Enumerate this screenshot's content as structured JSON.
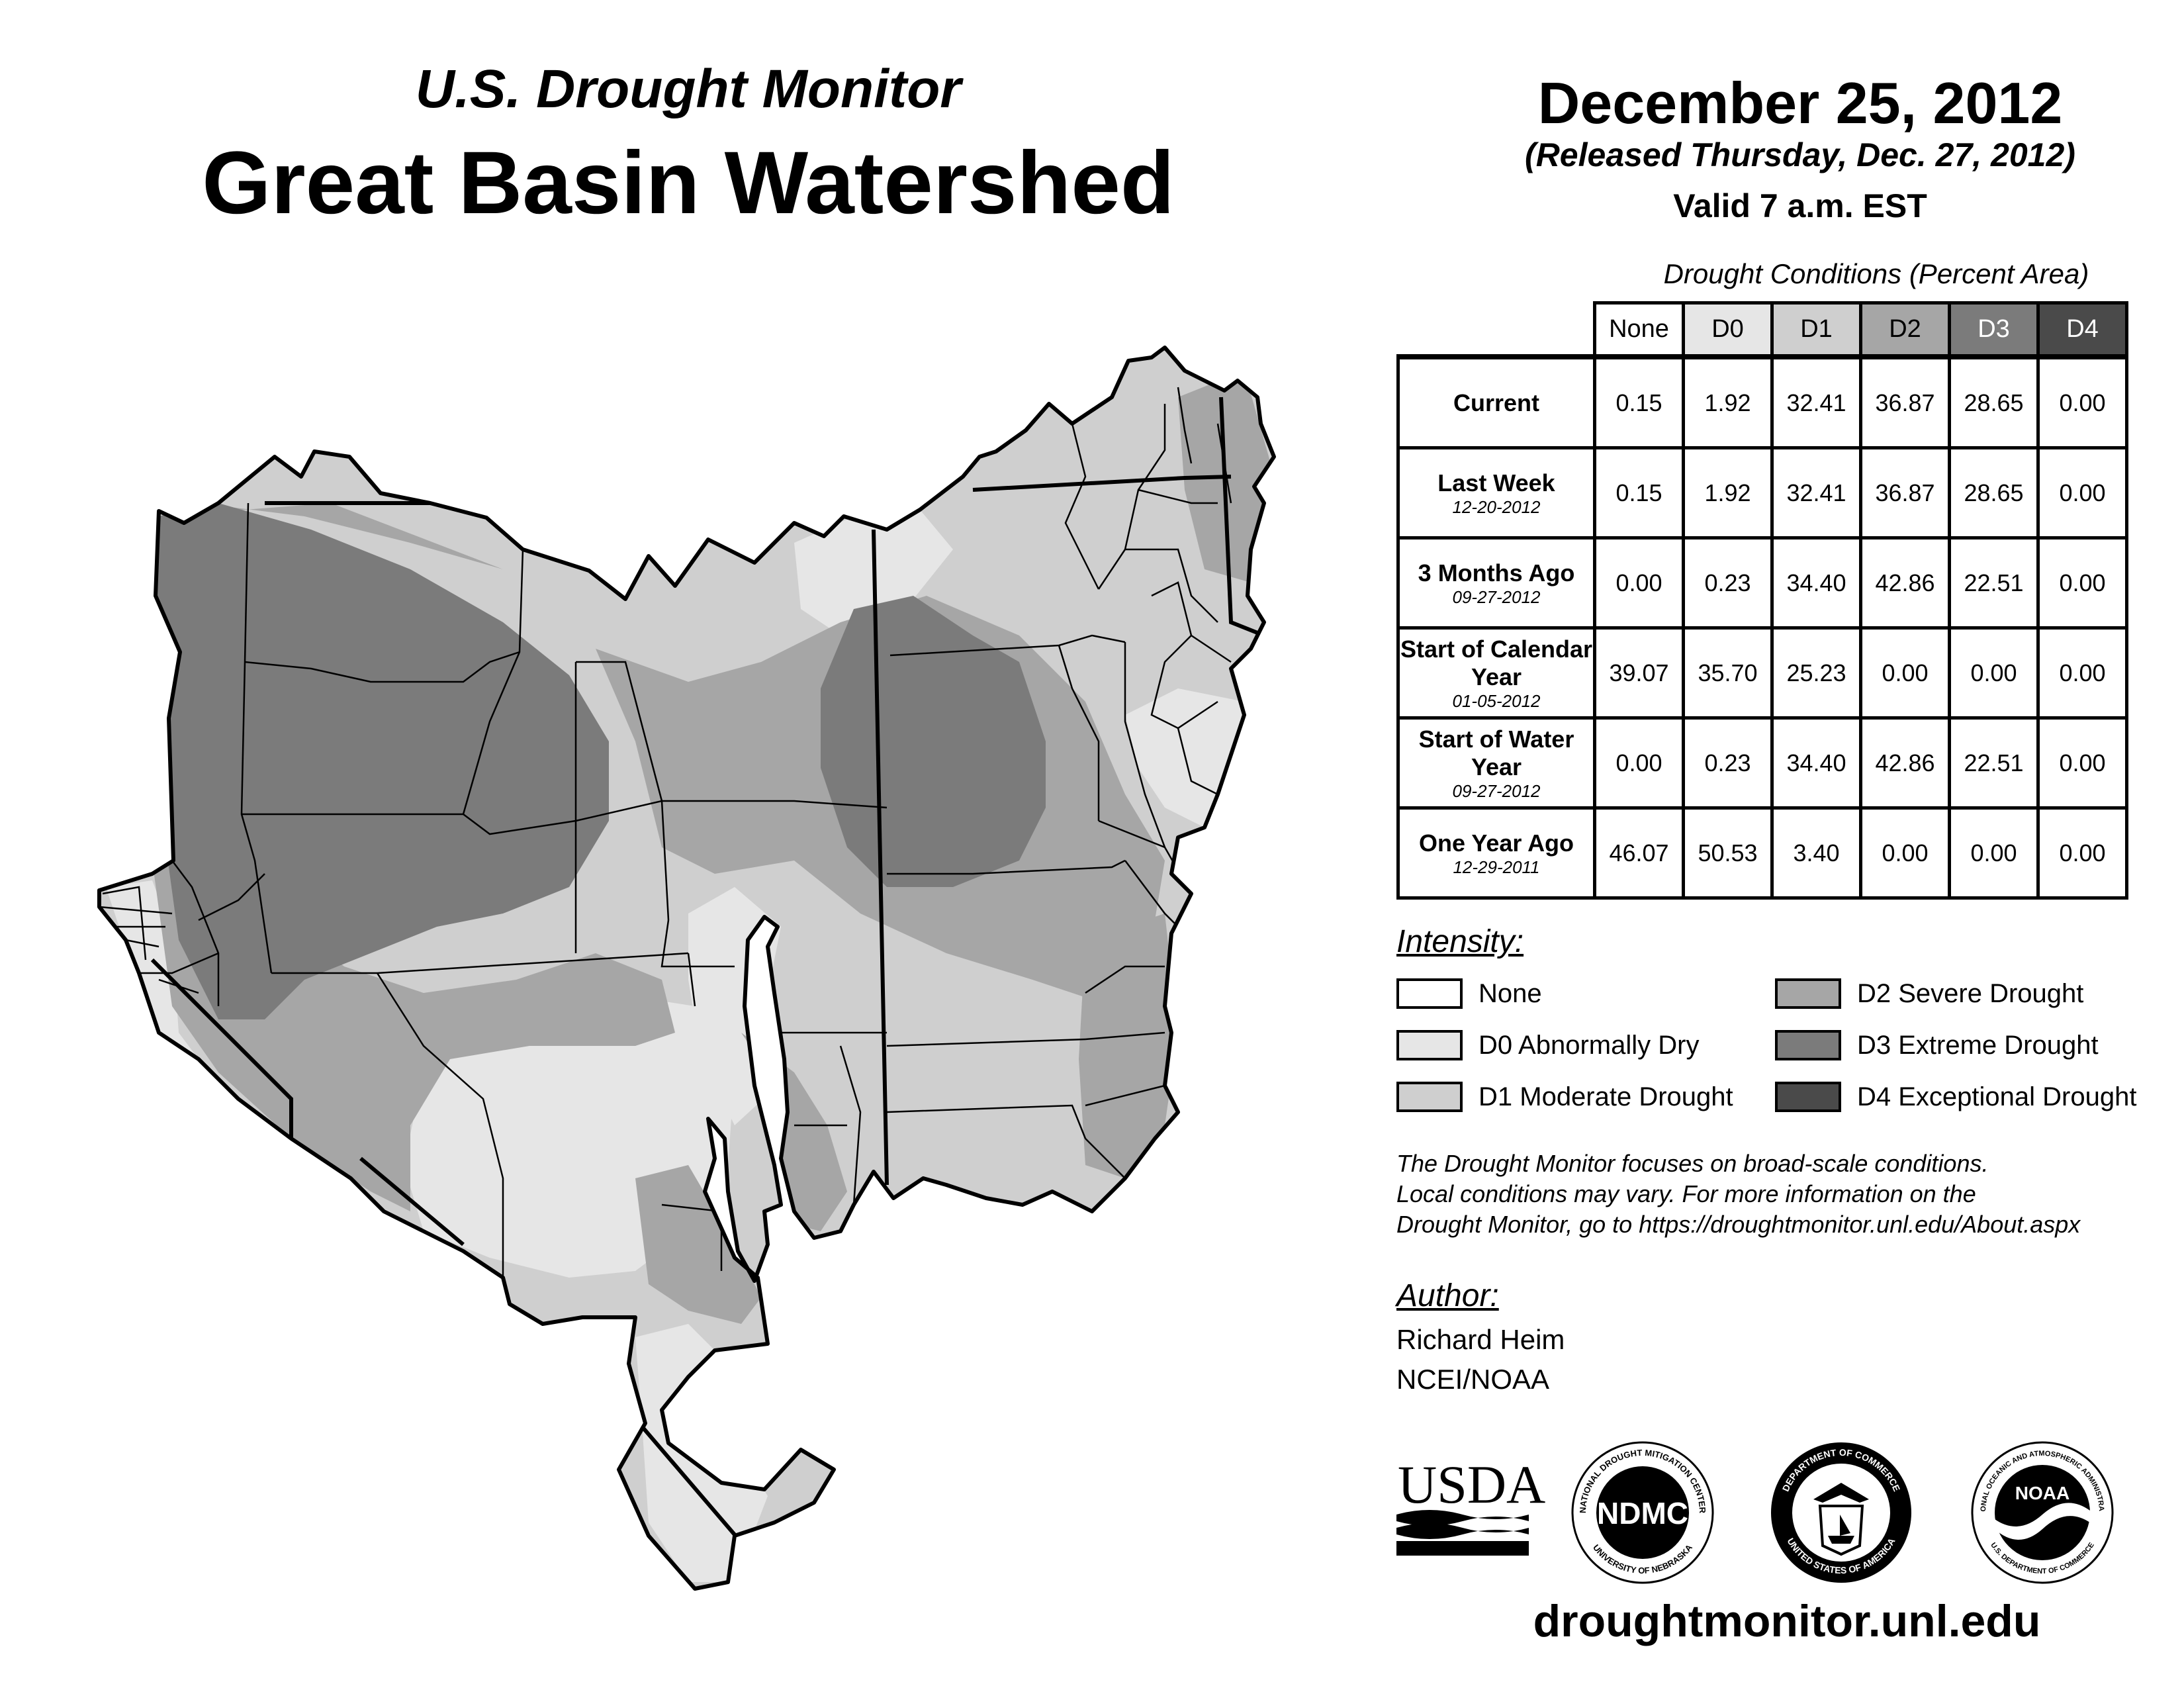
{
  "header": {
    "subtitle": "U.S. Drought Monitor",
    "title": "Great Basin Watershed"
  },
  "date_block": {
    "date": "December 25, 2012",
    "released": "(Released Thursday, Dec. 27, 2012)",
    "valid": "Valid 7 a.m. EST"
  },
  "table": {
    "caption": "Drought Conditions (Percent Area)",
    "columns": [
      "None",
      "D0",
      "D1",
      "D2",
      "D3",
      "D4"
    ],
    "rows": [
      {
        "label": "Current",
        "date": "",
        "values": [
          "0.15",
          "1.92",
          "32.41",
          "36.87",
          "28.65",
          "0.00"
        ]
      },
      {
        "label": "Last Week",
        "date": "12-20-2012",
        "values": [
          "0.15",
          "1.92",
          "32.41",
          "36.87",
          "28.65",
          "0.00"
        ]
      },
      {
        "label": "3 Months Ago",
        "date": "09-27-2012",
        "values": [
          "0.00",
          "0.23",
          "34.40",
          "42.86",
          "22.51",
          "0.00"
        ]
      },
      {
        "label": "Start of Calendar Year",
        "date": "01-05-2012",
        "values": [
          "39.07",
          "35.70",
          "25.23",
          "0.00",
          "0.00",
          "0.00"
        ]
      },
      {
        "label": "Start of Water Year",
        "date": "09-27-2012",
        "values": [
          "0.00",
          "0.23",
          "34.40",
          "42.86",
          "22.51",
          "0.00"
        ]
      },
      {
        "label": "One Year Ago",
        "date": "12-29-2011",
        "values": [
          "46.07",
          "50.53",
          "3.40",
          "0.00",
          "0.00",
          "0.00"
        ]
      }
    ]
  },
  "legend": {
    "title": "Intensity:",
    "items": [
      {
        "label": "None",
        "color": "#ffffff"
      },
      {
        "label": "D0 Abnormally Dry",
        "color": "#e6e6e6"
      },
      {
        "label": "D1 Moderate Drought",
        "color": "#cfcfcf"
      },
      {
        "label": "D2 Severe Drought",
        "color": "#a6a6a6"
      },
      {
        "label": "D3 Extreme Drought",
        "color": "#7b7b7b"
      },
      {
        "label": "D4 Exceptional Drought",
        "color": "#4a4a4a"
      }
    ]
  },
  "disclaimer": {
    "line1": "The Drought Monitor focuses on broad-scale conditions.",
    "line2": "Local conditions may vary. For more information on the",
    "line3": "Drought Monitor, go to https://droughtmonitor.unl.edu/About.aspx"
  },
  "author": {
    "label": "Author:",
    "name": "Richard Heim",
    "org": "NCEI/NOAA"
  },
  "logos": {
    "usda": "USDA",
    "ndmc": "NDMC",
    "ndmc_ring_top": "NATIONAL DROUGHT MITIGATION CENTER",
    "ndmc_ring_bottom": "UNIVERSITY OF NEBRASKA",
    "commerce_ring_top": "DEPARTMENT OF COMMERCE",
    "commerce_ring_bottom": "UNITED STATES OF AMERICA",
    "noaa": "NOAA",
    "noaa_ring_top": "NATIONAL OCEANIC AND ATMOSPHERIC ADMINISTRATION",
    "noaa_ring_bottom": "U.S. DEPARTMENT OF COMMERCE"
  },
  "website": "droughtmonitor.unl.edu"
}
